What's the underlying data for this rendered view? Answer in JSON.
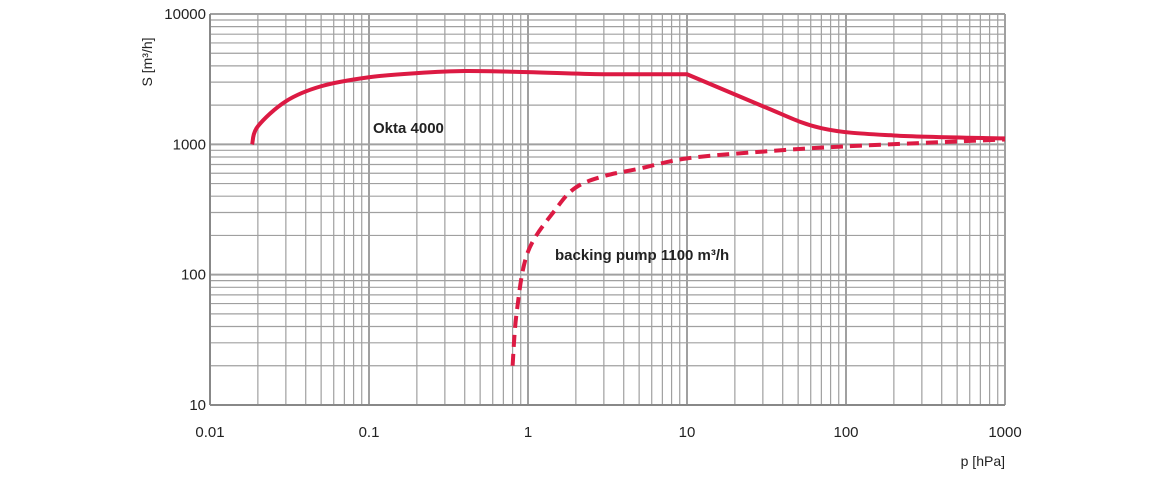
{
  "chart_data": {
    "type": "line",
    "xlabel": "p [hPa]",
    "ylabel": "S [m³/h]",
    "xscale": "log",
    "yscale": "log",
    "xlim": [
      0.01,
      1000
    ],
    "ylim": [
      10,
      10000
    ],
    "grid": true,
    "x_ticks": [
      "0.01",
      "0.1",
      "1",
      "10",
      "100",
      "1000"
    ],
    "y_ticks": [
      "10",
      "100",
      "1000",
      "10000"
    ],
    "colors": {
      "curve": "#dc1a43",
      "grid": "#a0a0a0"
    },
    "series": [
      {
        "name": "Okta 4000",
        "style": "solid",
        "x": [
          0.0184,
          0.02,
          0.03,
          0.05,
          0.1,
          0.2,
          0.4,
          1,
          3,
          10,
          30,
          70,
          200,
          1000
        ],
        "y": [
          1000,
          1375,
          2140,
          2790,
          3270,
          3520,
          3650,
          3580,
          3450,
          3450,
          1960,
          1330,
          1170,
          1110
        ]
      },
      {
        "name": "backing pump 1100 m³/h",
        "style": "dashed",
        "x": [
          0.8,
          0.85,
          1,
          1.5,
          2,
          3,
          5,
          10,
          30,
          100,
          1000
        ],
        "y": [
          20,
          52,
          150,
          320,
          467,
          570,
          650,
          780,
          880,
          965,
          1090
        ]
      }
    ]
  }
}
